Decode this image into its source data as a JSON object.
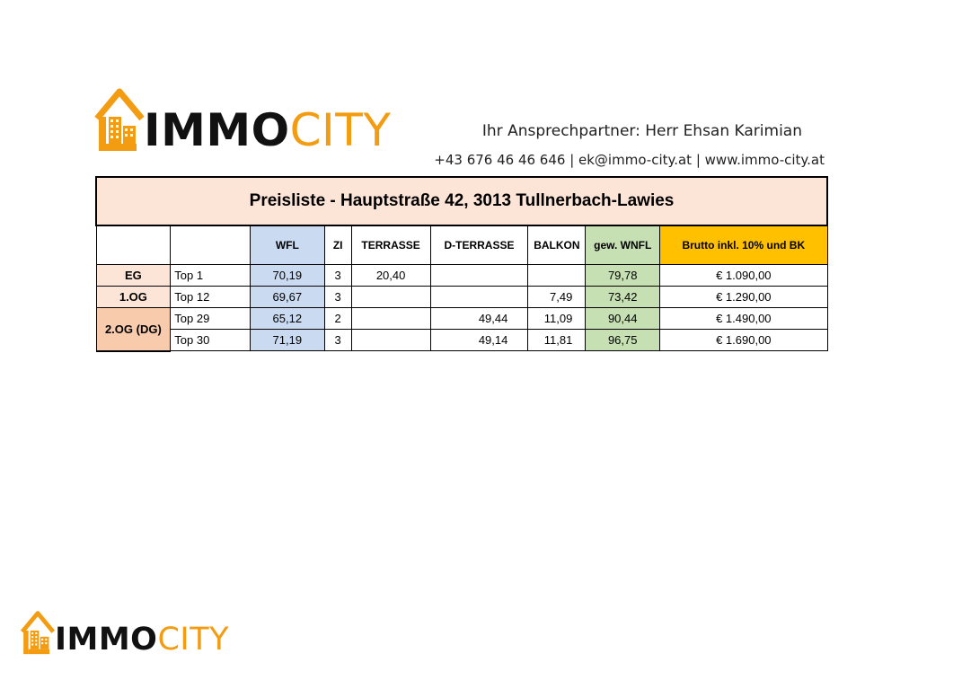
{
  "brand": {
    "immo": "IMMO",
    "city": "CITY",
    "accent_color": "#f39c12",
    "logo_icon": "house-building-icon"
  },
  "contact": {
    "name_line": "Ihr Ansprechpartner: Herr Ehsan Karimian",
    "info_line": "+43 676 46 46 646 | ek@immo-city.at | www.immo-city.at"
  },
  "table": {
    "title": "Preisliste - Hauptstraße 42, 3013 Tullnerbach-Lawies",
    "headers": [
      "",
      "",
      "WFL",
      "ZI",
      "TERRASSE",
      "D-TERRASSE",
      "BALKON",
      "gew. WNFL",
      "Brutto inkl. 10% und BK"
    ],
    "rows": [
      {
        "floor": "EG",
        "unit": "Top 1",
        "wfl": "70,19",
        "zi": "3",
        "terrasse": "20,40",
        "dterrasse": "",
        "balkon": "",
        "gew": "79,78",
        "brutto": "€ 1.090,00"
      },
      {
        "floor": "1.OG",
        "unit": "Top 12",
        "wfl": "69,67",
        "zi": "3",
        "terrasse": "",
        "dterrasse": "",
        "balkon": "7,49",
        "gew": "73,42",
        "brutto": "€ 1.290,00"
      },
      {
        "floor": "2.OG (DG)",
        "unit": "Top 29",
        "wfl": "65,12",
        "zi": "2",
        "terrasse": "",
        "dterrasse": "49,44",
        "balkon": "11,09",
        "gew": "90,44",
        "brutto": "€ 1.490,00"
      },
      {
        "floor": "",
        "unit": "Top 30",
        "wfl": "71,19",
        "zi": "3",
        "terrasse": "",
        "dterrasse": "49,14",
        "balkon": "11,81",
        "gew": "96,75",
        "brutto": "€ 1.690,00"
      }
    ]
  }
}
